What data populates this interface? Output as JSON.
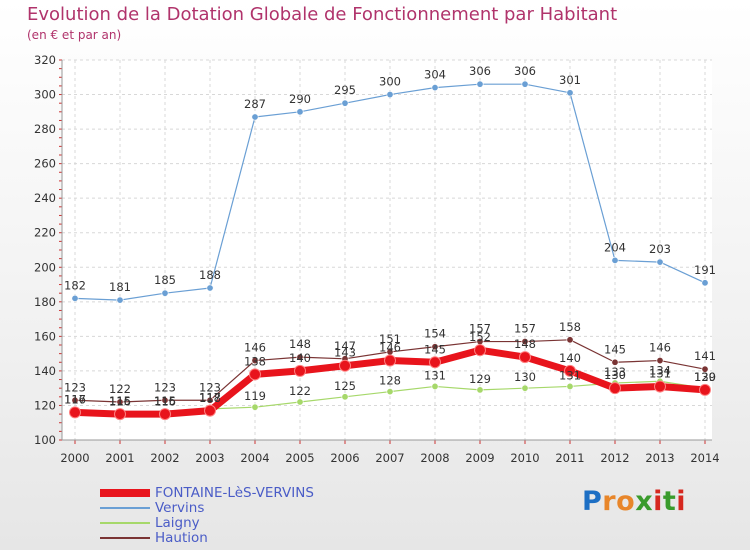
{
  "title": "Evolution de la Dotation Globale de Fonctionnement par Habitant",
  "subtitle": "(en € et par an)",
  "brand": {
    "letters": [
      "P",
      "r",
      "o",
      "x",
      "i",
      "t",
      "i"
    ],
    "colors": [
      "#1d6fc4",
      "#e8862a",
      "#e8862a",
      "#3a9b2c",
      "#d6281f",
      "#3a9b2c",
      "#d6281f"
    ]
  },
  "chart_data": {
    "type": "line",
    "x": [
      "2000",
      "2001",
      "2002",
      "2003",
      "2004",
      "2005",
      "2006",
      "2007",
      "2008",
      "2009",
      "2010",
      "2011",
      "2012",
      "2013",
      "2014"
    ],
    "ylim": [
      100,
      320
    ],
    "yticks": [
      "100",
      "120",
      "140",
      "160",
      "180",
      "200",
      "220",
      "240",
      "260",
      "280",
      "300",
      "320"
    ],
    "grid": true,
    "legend_position": "bottom-left",
    "series": [
      {
        "name": "FONTAINE-LèS-VERVINS",
        "color": "#e8141c",
        "values": [
          116,
          115,
          115,
          117,
          138,
          140,
          143,
          146,
          145,
          152,
          148,
          140,
          130,
          131,
          129
        ],
        "labels": [
          "116",
          "115",
          "115",
          "117",
          "138",
          "140",
          "143",
          "146",
          "145",
          "152",
          "148",
          "140",
          "130",
          "131",
          "129"
        ]
      },
      {
        "name": "Vervins",
        "color": "#6a9fd4",
        "values": [
          182,
          181,
          185,
          188,
          287,
          290,
          295,
          300,
          304,
          306,
          306,
          301,
          204,
          203,
          191
        ],
        "labels": [
          "182",
          "181",
          "185",
          "188",
          "287",
          "290",
          "295",
          "300",
          "304",
          "306",
          "306",
          "301",
          "204",
          "203",
          "191"
        ]
      },
      {
        "name": "Laigny",
        "color": "#a6d86a",
        "values": [
          117,
          116,
          116,
          118,
          119,
          122,
          125,
          128,
          131,
          129,
          130,
          131,
          133,
          134,
          130
        ],
        "labels": [
          "117",
          "116",
          "116",
          "118",
          "119",
          "122",
          "125",
          "128",
          "131",
          "129",
          "130",
          "131",
          "133",
          "134",
          "130"
        ]
      },
      {
        "name": "Haution",
        "color": "#7a3434",
        "values": [
          123,
          122,
          123,
          123,
          146,
          148,
          147,
          151,
          154,
          157,
          157,
          158,
          145,
          146,
          141
        ],
        "labels": [
          "123",
          "122",
          "123",
          "123",
          "146",
          "148",
          "147",
          "151",
          "154",
          "157",
          "157",
          "158",
          "145",
          "146",
          "141"
        ]
      }
    ]
  }
}
